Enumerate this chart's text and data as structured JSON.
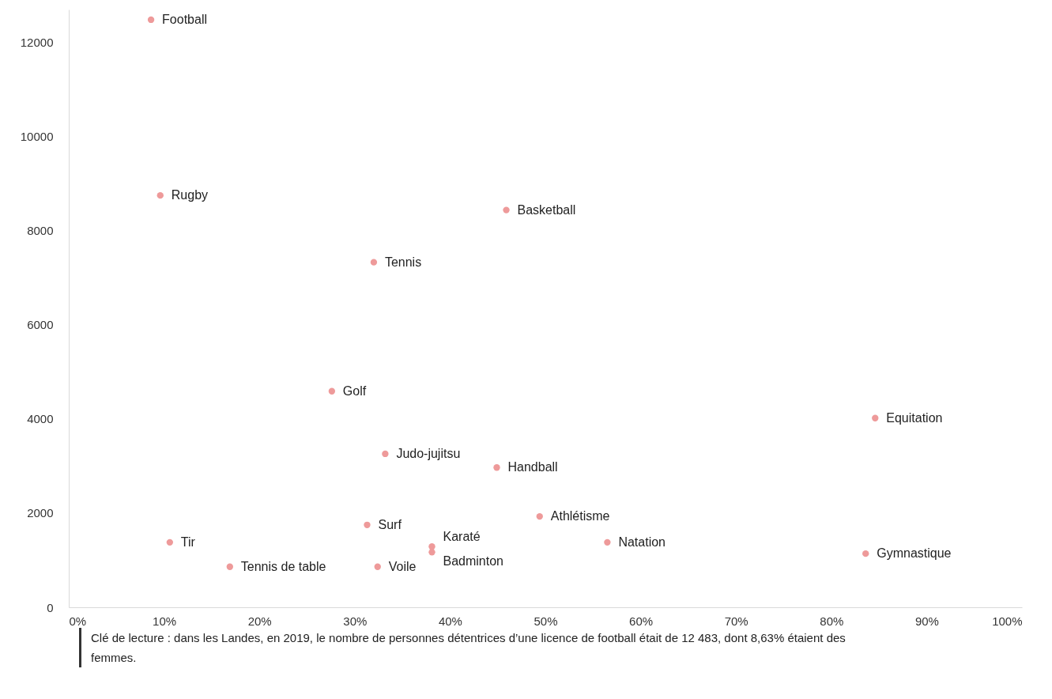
{
  "chart_data": {
    "type": "scatter",
    "xlim": [
      0,
      100
    ],
    "ylim": [
      0,
      12700
    ],
    "xticks": [
      {
        "value": 0,
        "label": "0%"
      },
      {
        "value": 10,
        "label": "10%"
      },
      {
        "value": 20,
        "label": "20%"
      },
      {
        "value": 30,
        "label": "30%"
      },
      {
        "value": 40,
        "label": "40%"
      },
      {
        "value": 50,
        "label": "50%"
      },
      {
        "value": 60,
        "label": "60%"
      },
      {
        "value": 70,
        "label": "70%"
      },
      {
        "value": 80,
        "label": "80%"
      },
      {
        "value": 90,
        "label": "90%"
      },
      {
        "value": 100,
        "label": "100%"
      }
    ],
    "yticks": [
      0,
      2000,
      4000,
      6000,
      8000,
      10000,
      12000
    ],
    "grid": false,
    "marker": "circle",
    "series": [
      {
        "color": "#ee9a9a",
        "x": [
          8.63,
          9.6,
          45.9,
          32.0,
          27.6,
          33.2,
          44.9,
          31.3,
          10.6,
          16.9,
          32.4,
          38.1,
          38.1,
          49.4,
          56.5,
          84.6,
          83.6
        ],
        "values": [
          12483,
          8750,
          8440,
          7330,
          4590,
          3260,
          2970,
          1750,
          1380,
          860,
          860,
          1170,
          1290,
          1930,
          1380,
          4020,
          1140
        ]
      }
    ],
    "annotations": [
      {
        "text": "Football",
        "x": 8.63,
        "y": 12483
      },
      {
        "text": "Rugby",
        "x": 9.6,
        "y": 8750
      },
      {
        "text": "Basketball",
        "x": 45.9,
        "y": 8440
      },
      {
        "text": "Tennis",
        "x": 32.0,
        "y": 7330
      },
      {
        "text": "Golf",
        "x": 27.6,
        "y": 4590
      },
      {
        "text": "Judo-jujitsu",
        "x": 33.2,
        "y": 3260
      },
      {
        "text": "Handball",
        "x": 44.9,
        "y": 2970
      },
      {
        "text": "Surf",
        "x": 31.3,
        "y": 1750
      },
      {
        "text": "Tir",
        "x": 10.6,
        "y": 1380
      },
      {
        "text": "Tennis de table",
        "x": 16.9,
        "y": 860
      },
      {
        "text": "Voile",
        "x": 32.4,
        "y": 860
      },
      {
        "text": "Badminton",
        "x": 38.1,
        "y": 1170
      },
      {
        "text": "Karaté",
        "x": 38.1,
        "y": 1290
      },
      {
        "text": "Athlétisme",
        "x": 49.4,
        "y": 1930
      },
      {
        "text": "Natation",
        "x": 56.5,
        "y": 1380
      },
      {
        "text": "Equitation",
        "x": 84.6,
        "y": 4020
      },
      {
        "text": "Gymnastique",
        "x": 83.6,
        "y": 1140
      },
      "Clé de lecture : dans les Landes, en 2019, le nombre de personnes détentrices d’une licence de football était de 12 483, dont 8,63% étaient des femmes."
    ]
  }
}
